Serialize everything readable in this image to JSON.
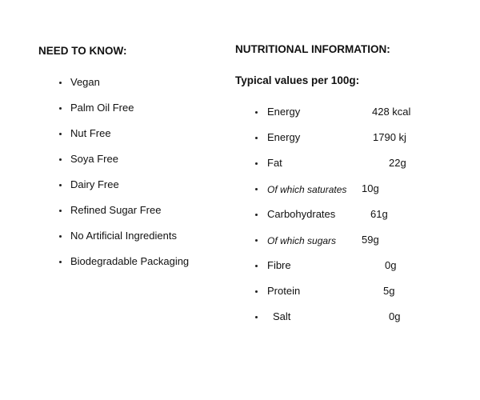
{
  "need_to_know": {
    "title": "NEED TO KNOW:",
    "items": [
      "Vegan",
      "Palm Oil Free",
      "Nut Free",
      "Soya Free",
      "Dairy Free",
      "Refined Sugar Free",
      "No Artificial Ingredients",
      "Biodegradable Packaging"
    ]
  },
  "nutrition": {
    "title": "NUTRITIONAL INFORMATION:",
    "subtitle": "Typical values per 100g:",
    "rows": [
      {
        "name": "Energy",
        "value": "428 kcal"
      },
      {
        "name": "Energy",
        "value": "1790 kj"
      },
      {
        "name": "Fat",
        "value": "22g"
      },
      {
        "name": "Of which saturates",
        "value": "10g"
      },
      {
        "name": "Carbohydrates",
        "value": "61g"
      },
      {
        "name": "Of which sugars",
        "value": "59g"
      },
      {
        "name": "Fibre",
        "value": "0g"
      },
      {
        "name": "Protein",
        "value": "5g"
      },
      {
        "name": "Salt",
        "value": "0g"
      }
    ]
  }
}
